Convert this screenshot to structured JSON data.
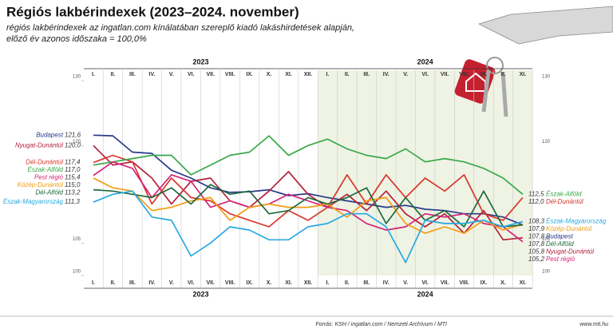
{
  "chart_data": {
    "type": "line",
    "title": "Régiós lakbérindexek (2023–2024. november)",
    "subtitle": [
      "régiós lakbérindexek az ingatlan.com kínálatában szereplő kiadó lakáshirdetések alapján,",
      "előző év azonos időszaka = 100,0%"
    ],
    "years": [
      "2023",
      "2024"
    ],
    "categories": [
      "I.",
      "II.",
      "III.",
      "IV.",
      "V.",
      "VI.",
      "VII.",
      "VIII.",
      "IX.",
      "X.",
      "XI.",
      "XII.",
      "I.",
      "II.",
      "III.",
      "IV.",
      "V.",
      "VI.",
      "VII.",
      "VIII.",
      "IX.",
      "X.",
      "XI."
    ],
    "ylim": [
      100,
      130
    ],
    "yticks": [
      100,
      105,
      120,
      130
    ],
    "series": [
      {
        "name": "Budapest",
        "color": "#2b3a8c",
        "values": [
          121.6,
          121.5,
          119.0,
          118.8,
          116.2,
          115.0,
          113.5,
          112.8,
          112.9,
          113.2,
          112.3,
          112.6,
          112.0,
          111.5,
          111.0,
          110.5,
          110.8,
          110.2,
          110.0,
          109.5,
          109.5,
          109.0,
          107.8
        ],
        "value_labels": [
          "121,6",
          null,
          null,
          null,
          null,
          null,
          null,
          null,
          null,
          null,
          null,
          null,
          null,
          null,
          null,
          null,
          null,
          null,
          null,
          null,
          null,
          null,
          "107,8"
        ]
      },
      {
        "name": "Nyugat-Dunántúl",
        "color": "#b5203a",
        "values": [
          120.0,
          117.0,
          117.5,
          115.0,
          111.0,
          114.5,
          115.0,
          111.5,
          110.5,
          113.0,
          116.0,
          112.5,
          110.5,
          112.5,
          110.0,
          113.0,
          109.5,
          107.5,
          109.5,
          106.5,
          110.0,
          105.5,
          105.8
        ],
        "value_labels": [
          "120,0",
          null,
          null,
          null,
          null,
          null,
          null,
          null,
          null,
          null,
          null,
          null,
          null,
          null,
          null,
          null,
          null,
          null,
          null,
          null,
          null,
          null,
          "105,8"
        ]
      },
      {
        "name": "Dél-Dunántúl",
        "color": "#d9362b",
        "values": [
          117.4,
          118.5,
          117.5,
          111.0,
          115.0,
          112.0,
          111.5,
          109.5,
          108.5,
          107.5,
          110.0,
          108.5,
          110.5,
          115.5,
          111.0,
          115.5,
          112.0,
          115.0,
          113.0,
          115.5,
          109.5,
          108.5,
          112.0
        ],
        "value_labels": [
          "117,4",
          null,
          null,
          null,
          null,
          null,
          null,
          null,
          null,
          null,
          null,
          null,
          null,
          null,
          null,
          null,
          null,
          null,
          null,
          null,
          null,
          null,
          "112,0"
        ]
      },
      {
        "name": "Észak-Alföld",
        "color": "#3aa84a",
        "values": [
          117.0,
          117.5,
          118.0,
          118.5,
          118.5,
          115.5,
          117.0,
          118.5,
          119.0,
          121.5,
          118.5,
          120.0,
          121.0,
          119.5,
          118.5,
          118.0,
          119.5,
          117.5,
          118.0,
          117.5,
          116.5,
          115.0,
          112.5
        ],
        "value_labels": [
          "117,0",
          null,
          null,
          null,
          null,
          null,
          null,
          null,
          null,
          null,
          null,
          null,
          null,
          null,
          null,
          null,
          null,
          null,
          null,
          null,
          null,
          null,
          "112,5"
        ]
      },
      {
        "name": "Pest régió",
        "color": "#d4237a",
        "values": [
          115.4,
          117.5,
          116.5,
          112.0,
          115.5,
          114.5,
          110.5,
          111.5,
          110.5,
          111.0,
          112.5,
          111.5,
          110.5,
          110.0,
          108.0,
          107.0,
          107.5,
          109.5,
          109.0,
          109.5,
          108.0,
          107.5,
          105.2
        ],
        "value_labels": [
          "115,4",
          null,
          null,
          null,
          null,
          null,
          null,
          null,
          null,
          null,
          null,
          null,
          null,
          null,
          null,
          null,
          null,
          null,
          null,
          null,
          null,
          null,
          "105,2"
        ]
      },
      {
        "name": "Közép-Dunántúl",
        "color": "#f39c12",
        "values": [
          115.0,
          113.5,
          113.0,
          110.0,
          110.5,
          111.5,
          112.0,
          108.5,
          110.5,
          111.0,
          110.5,
          110.5,
          111.0,
          109.0,
          111.5,
          112.0,
          108.0,
          106.5,
          107.5,
          106.5,
          108.5,
          107.0,
          107.9
        ],
        "value_labels": [
          "115,0",
          null,
          null,
          null,
          null,
          null,
          null,
          null,
          null,
          null,
          null,
          null,
          null,
          null,
          null,
          null,
          null,
          null,
          null,
          null,
          null,
          null,
          "107,9"
        ]
      },
      {
        "name": "Dél-Alföld",
        "color": "#1e6b3c",
        "values": [
          113.2,
          113.0,
          112.5,
          112.0,
          113.5,
          111.0,
          114.0,
          112.5,
          113.0,
          109.5,
          110.0,
          112.0,
          111.0,
          112.0,
          113.5,
          108.0,
          112.0,
          108.5,
          110.0,
          107.5,
          113.0,
          107.5,
          107.8
        ],
        "value_labels": [
          "113,2",
          null,
          null,
          null,
          null,
          null,
          null,
          null,
          null,
          null,
          null,
          null,
          null,
          null,
          null,
          null,
          null,
          null,
          null,
          null,
          null,
          null,
          "107,8"
        ]
      },
      {
        "name": "Észak-Magyarország",
        "color": "#29a9e0",
        "values": [
          111.3,
          112.5,
          113.0,
          109.0,
          108.5,
          103.0,
          105.0,
          107.5,
          107.0,
          105.5,
          105.5,
          107.5,
          108.0,
          109.5,
          109.5,
          107.5,
          102.0,
          108.5,
          108.0,
          108.0,
          108.5,
          107.5,
          108.3
        ],
        "value_labels": [
          "111,3",
          null,
          null,
          null,
          null,
          null,
          null,
          null,
          null,
          null,
          null,
          null,
          null,
          null,
          null,
          null,
          null,
          null,
          null,
          null,
          null,
          null,
          "108,3"
        ]
      }
    ],
    "source": "Forrás: KSH / ingatlan.com / Nemzeti Archívum / MTI",
    "website": "www.mti.hu"
  }
}
